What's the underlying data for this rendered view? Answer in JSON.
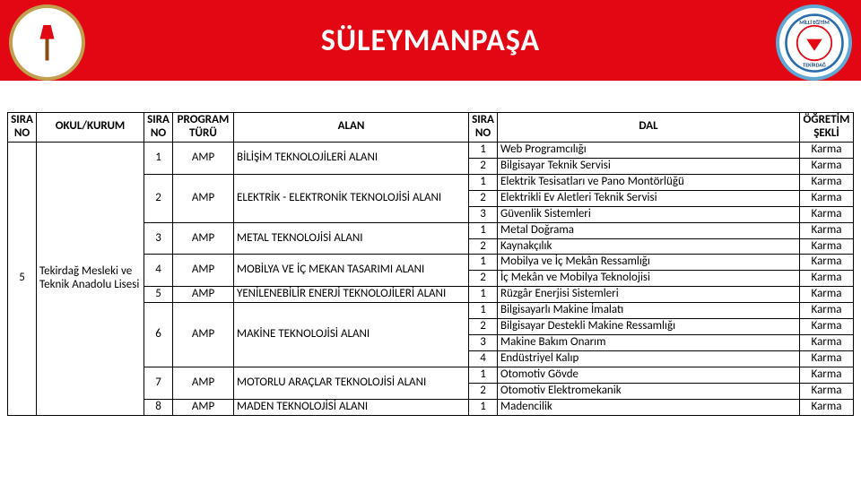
{
  "header": {
    "title": "SÜLEYMANPAŞA",
    "bg_color": "#e30613",
    "title_color": "#ffffff"
  },
  "table": {
    "columns": {
      "sira1": "SIRA NO",
      "okul": "OKUL/KURUM",
      "sira2": "SIRA NO",
      "program": "PROGRAM TÜRÜ",
      "alan": "ALAN",
      "sira3": "SIRA NO",
      "dal": "DAL",
      "ogretim": "ÖĞRETİM ŞEKLİ"
    },
    "okul_sira": "5",
    "okul_name": "Tekirdağ Mesleki ve Teknik Anadolu Lisesi",
    "alanlar": [
      {
        "sira": "1",
        "prog": "AMP",
        "ad": "BİLİŞİM TEKNOLOJİLERİ ALANI",
        "dallar": [
          {
            "sira": "1",
            "ad": "Web Programcılığı",
            "sekil": "Karma"
          },
          {
            "sira": "2",
            "ad": "Bilgisayar Teknik Servisi",
            "sekil": "Karma"
          }
        ]
      },
      {
        "sira": "2",
        "prog": "AMP",
        "ad": "ELEKTRİK - ELEKTRONİK TEKNOLOJİSİ ALANI",
        "dallar": [
          {
            "sira": "1",
            "ad": "Elektrik Tesisatları ve Pano Montörlüğü",
            "sekil": "Karma"
          },
          {
            "sira": "2",
            "ad": "Elektrikli Ev Aletleri Teknik Servisi",
            "sekil": "Karma"
          },
          {
            "sira": "3",
            "ad": "Güvenlik Sistemleri",
            "sekil": "Karma"
          }
        ]
      },
      {
        "sira": "3",
        "prog": "AMP",
        "ad": "METAL TEKNOLOJİSİ ALANI",
        "dallar": [
          {
            "sira": "1",
            "ad": "Metal Doğrama",
            "sekil": "Karma"
          },
          {
            "sira": "2",
            "ad": "Kaynakçılık",
            "sekil": "Karma"
          }
        ]
      },
      {
        "sira": "4",
        "prog": "AMP",
        "ad": "MOBİLYA VE İÇ MEKAN TASARIMI ALANI",
        "dallar": [
          {
            "sira": "1",
            "ad": "Mobilya ve İç Mekân Ressamlığı",
            "sekil": "Karma"
          },
          {
            "sira": "2",
            "ad": "İç Mekân ve Mobilya Teknolojisi",
            "sekil": "Karma"
          }
        ]
      },
      {
        "sira": "5",
        "prog": "AMP",
        "ad": "YENİLENEBİLİR ENERJİ TEKNOLOJİLERİ ALANI",
        "dallar": [
          {
            "sira": "1",
            "ad": "Rüzgâr Enerjisi Sistemleri",
            "sekil": "Karma"
          }
        ]
      },
      {
        "sira": "6",
        "prog": "AMP",
        "ad": "MAKİNE TEKNOLOJİSİ ALANI",
        "dallar": [
          {
            "sira": "1",
            "ad": "Bilgisayarlı Makine İmalatı",
            "sekil": "Karma"
          },
          {
            "sira": "2",
            "ad": "Bilgisayar Destekli Makine Ressamlığı",
            "sekil": "Karma"
          },
          {
            "sira": "3",
            "ad": "Makine Bakım Onarım",
            "sekil": "Karma"
          },
          {
            "sira": "4",
            "ad": "Endüstriyel Kalıp",
            "sekil": "Karma"
          }
        ]
      },
      {
        "sira": "7",
        "prog": "AMP",
        "ad": "MOTORLU ARAÇLAR TEKNOLOJİSİ ALANI",
        "dallar": [
          {
            "sira": "1",
            "ad": "Otomotiv Gövde",
            "sekil": "Karma"
          },
          {
            "sira": "2",
            "ad": "Otomotiv Elektromekanik",
            "sekil": "Karma"
          }
        ]
      },
      {
        "sira": "8",
        "prog": "AMP",
        "ad": "MADEN TEKNOLOJİSİ ALANI",
        "dallar": [
          {
            "sira": "1",
            "ad": "Madencilik",
            "sekil": "Karma"
          }
        ]
      }
    ]
  }
}
